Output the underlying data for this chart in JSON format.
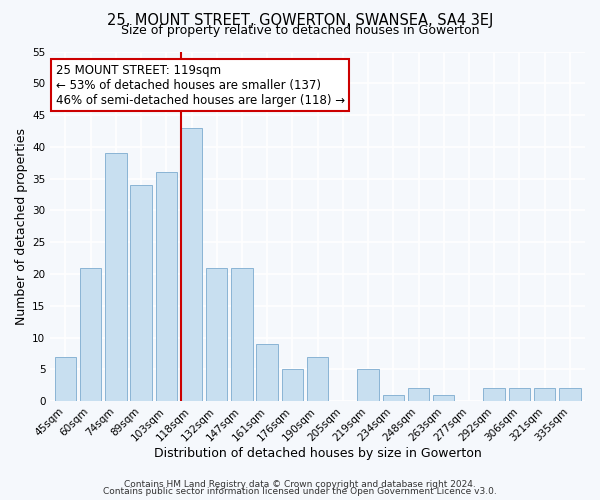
{
  "title": "25, MOUNT STREET, GOWERTON, SWANSEA, SA4 3EJ",
  "subtitle": "Size of property relative to detached houses in Gowerton",
  "xlabel": "Distribution of detached houses by size in Gowerton",
  "ylabel": "Number of detached properties",
  "bar_labels": [
    "45sqm",
    "60sqm",
    "74sqm",
    "89sqm",
    "103sqm",
    "118sqm",
    "132sqm",
    "147sqm",
    "161sqm",
    "176sqm",
    "190sqm",
    "205sqm",
    "219sqm",
    "234sqm",
    "248sqm",
    "263sqm",
    "277sqm",
    "292sqm",
    "306sqm",
    "321sqm",
    "335sqm"
  ],
  "bar_values": [
    7,
    21,
    39,
    34,
    36,
    43,
    21,
    21,
    9,
    5,
    7,
    0,
    5,
    1,
    2,
    1,
    0,
    2,
    2,
    2,
    2
  ],
  "bar_color": "#c8dff0",
  "bar_edgecolor": "#8ab4d4",
  "highlight_x_label": "118sqm",
  "highlight_line_color": "#cc0000",
  "annotation_text": "25 MOUNT STREET: 119sqm\n← 53% of detached houses are smaller (137)\n46% of semi-detached houses are larger (118) →",
  "annotation_box_edgecolor": "#cc0000",
  "annotation_box_facecolor": "#ffffff",
  "ylim": [
    0,
    55
  ],
  "yticks": [
    0,
    5,
    10,
    15,
    20,
    25,
    30,
    35,
    40,
    45,
    50,
    55
  ],
  "footer_line1": "Contains HM Land Registry data © Crown copyright and database right 2024.",
  "footer_line2": "Contains public sector information licensed under the Open Government Licence v3.0.",
  "background_color": "#f5f8fc",
  "grid_color": "#ffffff",
  "title_fontsize": 10.5,
  "subtitle_fontsize": 9,
  "axis_label_fontsize": 9,
  "tick_fontsize": 7.5,
  "footer_fontsize": 6.5
}
